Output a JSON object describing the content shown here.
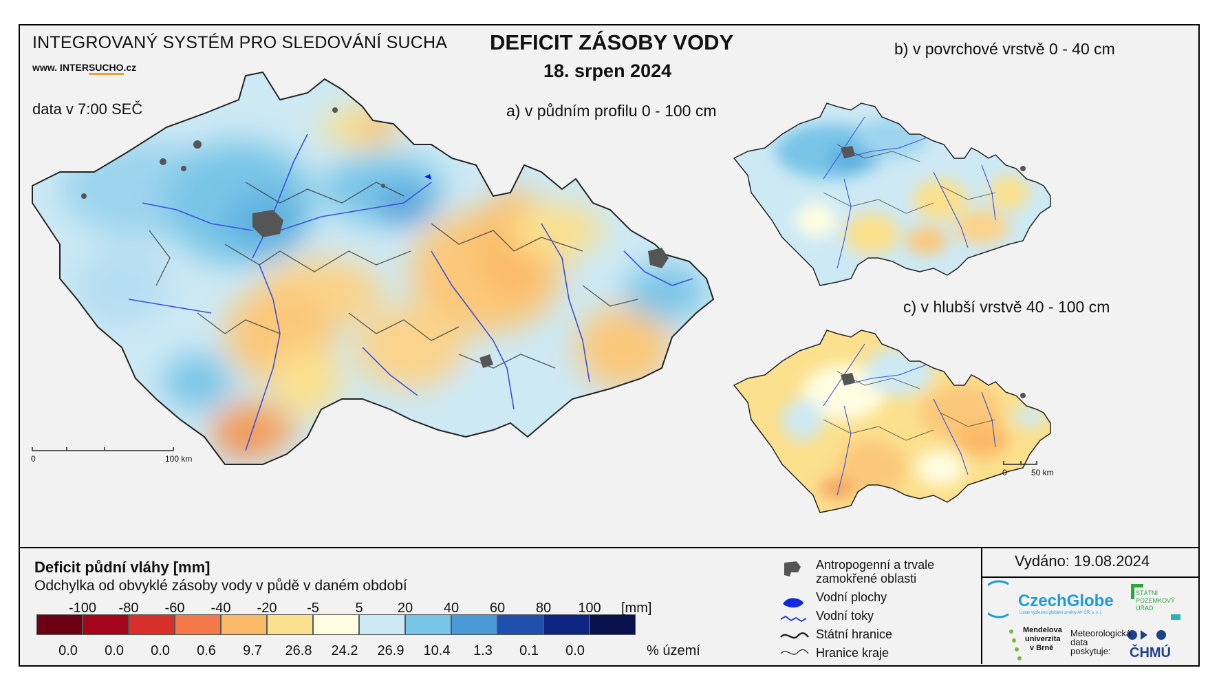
{
  "header": {
    "system_name": "INTEGROVANÝ SYSTÉM PRO SLEDOVÁNÍ SUCHA",
    "website_prefix": "www. INTER",
    "website_brand": "SUCHO",
    "website_suffix": ".cz",
    "data_time": "data v 7:00 SEČ"
  },
  "title": "DEFICIT ZÁSOBY VODY",
  "date": "18. srpen 2024",
  "maps": {
    "a": "a) v půdním profilu 0 - 100 cm",
    "b": "b) v povrchové vrstvě 0 - 40 cm",
    "c": "c) v hlubší vrstvě 40 - 100 cm"
  },
  "scalebars": {
    "main": {
      "zero": "0",
      "end": "100 km"
    },
    "small": {
      "zero": "0",
      "end": "50 km"
    }
  },
  "legend": {
    "title": "Deficit půdní vláhy  [mm]",
    "subtitle": "Odchylka od obvyklé zásoby vody v půdě v daném období",
    "unit": "[mm]",
    "percent_label": "% území",
    "class_labels": [
      "-100",
      "-80",
      "-60",
      "-40",
      "-20",
      "-5",
      "5",
      "20",
      "40",
      "60",
      "80",
      "100"
    ],
    "colors": [
      "#6b0015",
      "#a3061c",
      "#d7302a",
      "#f47848",
      "#fbb968",
      "#fbe08d",
      "#fefde2",
      "#cde9f4",
      "#79c5e7",
      "#4b9ad8",
      "#2050ad",
      "#0e2481",
      "#08104d"
    ],
    "percentages": [
      "0.0",
      "0.0",
      "0.0",
      "0.6",
      "9.7",
      "26.8",
      "24.2",
      "26.9",
      "10.4",
      "1.3",
      "0.1",
      "0.0"
    ]
  },
  "map_legend": {
    "items": [
      {
        "icon": "urban-area-icon",
        "label_1": "Antropogenní a trvale",
        "label_2": "zamokřené oblasti"
      },
      {
        "icon": "water-body-icon",
        "label_1": "Vodní plochy"
      },
      {
        "icon": "river-icon",
        "label_1": "Vodní toky"
      },
      {
        "icon": "state-border-icon",
        "label_1": "Státní hranice"
      },
      {
        "icon": "region-border-icon",
        "label_1": "Hranice kraje"
      }
    ]
  },
  "issued": "Vydáno: 19.08.2024",
  "logos": {
    "czechglobe": "CzechGlobe",
    "czechglobe_sub": "Ústav výzkumu globální změny AV ČR, v. v. i.",
    "spu_1": "STÁTNÍ",
    "spu_2": "POZEMKOVÝ",
    "spu_3": "ÚŘAD",
    "mendel_1": "Mendelova",
    "mendel_2": "univerzita",
    "mendel_3": "v Brně",
    "meteo_1": "Meteorologická",
    "meteo_2": "data",
    "meteo_3": "poskytuje:",
    "chmu": "ČHMÚ"
  }
}
